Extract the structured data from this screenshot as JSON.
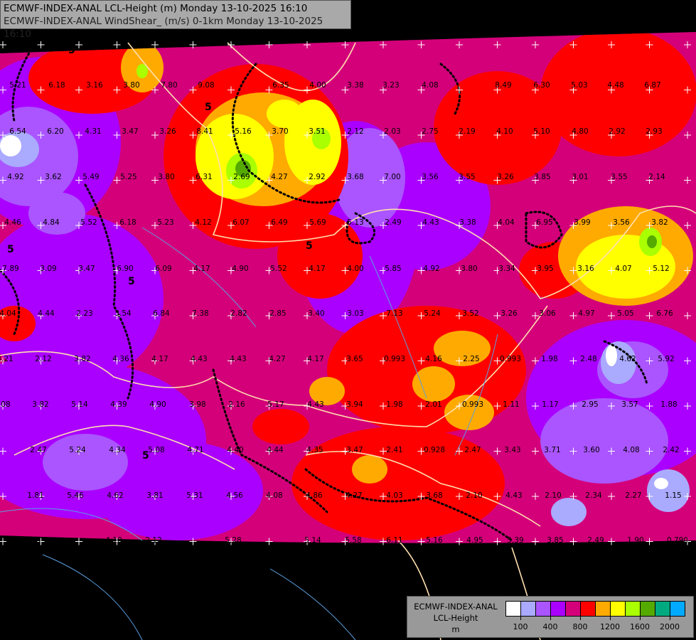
{
  "header": {
    "line1": "ECMWF-INDEX-ANAL LCL-Height (m) Monday 13-10-2025 16:10",
    "line2": "ECMWF-INDEX-ANAL WindShear_ (m/s) 0-1km Monday 13-10-2025 16:10"
  },
  "legend": {
    "line1": "ECMWF-INDEX-ANAL",
    "line2": "LCL-Height",
    "unit": "m",
    "colors": [
      "#ffffff",
      "#aaaaff",
      "#aa55ff",
      "#aa00ff",
      "#d4007a",
      "#ff0000",
      "#ffaa00",
      "#ffff00",
      "#aaff00",
      "#55aa00",
      "#00aa80",
      "#00aaff"
    ],
    "tick_labels": [
      "100",
      "400",
      "800",
      "1200",
      "1600",
      "2000"
    ]
  },
  "contour_label": "5",
  "wind_shear_values": [
    [
      "5.21",
      "6.18",
      "3.16",
      "3.80",
      "7.80",
      "9.08",
      "6.35",
      "4.00",
      "3.38",
      "3.23",
      "4.08",
      "8.49",
      "6.30",
      "5.03",
      "4.48",
      "6.87"
    ],
    [
      "6.54",
      "6.20",
      "4.31",
      "3.47",
      "3.26",
      "8.41",
      "5.16",
      "3.70",
      "3.51",
      "2.12",
      "2.03",
      "2.75",
      "2.19",
      "4.10",
      "5.10",
      "4.80",
      "2.92",
      "2.93"
    ],
    [
      "4.92",
      "3.62",
      "5.49",
      "5.25",
      "3.80",
      "6.31",
      "2.69",
      "4.27",
      "2.92",
      "3.68",
      "7.00",
      "3.56",
      "3.55",
      "3.26",
      "3.85",
      "3.01",
      "3.55",
      "2.14"
    ],
    [
      "4.46",
      "4.84",
      "5.52",
      "6.18",
      "5.23",
      "4.12",
      "6.07",
      "6.49",
      "5.69",
      "5.13",
      "2.49",
      "4.43",
      "3.38",
      "4.04",
      "6.95",
      "3.99",
      "3.56",
      "3.82"
    ],
    [
      "7.89",
      "3.09",
      "3.47",
      "6.90",
      "6.09",
      "4.17",
      "4.90",
      "5.52",
      "4.17",
      "4.00",
      "5.85",
      "4.92",
      "3.80",
      "3.34",
      "3.95",
      "3.16",
      "4.07",
      "5.12"
    ],
    [
      "4.04",
      "4.44",
      "2.23",
      "3.54",
      "6.84",
      "7.38",
      "2.82",
      "2.85",
      "3.40",
      "3.03",
      "7.13",
      "5.24",
      "3.52",
      "3.26",
      "3.06",
      "4.97",
      "5.05",
      "6.76"
    ],
    [
      "3.21",
      "2.12",
      "3.82",
      "4.36",
      "4.17",
      "4.43",
      "4.43",
      "4.27",
      "4.17",
      "3.65",
      "0.993",
      "4.16",
      "2.25",
      "0.993",
      "1.98",
      "2.48",
      "4.62",
      "5.92"
    ],
    [
      "3.08",
      "3.82",
      "5.14",
      "4.39",
      "4.90",
      "3.98",
      "2.16",
      "5.17",
      "4.43",
      "3.94",
      "1.98",
      "2.01",
      "0.993",
      "1.11",
      "1.17",
      "2.95",
      "3.57",
      "1.88"
    ],
    [
      "2.47",
      "5.24",
      "4.34",
      "5.08",
      "4.71",
      "4.40",
      "4.44",
      "4.35",
      "3.47",
      "2.41",
      "0.928",
      "2.47",
      "3.43",
      "3.71",
      "3.60",
      "4.08",
      "2.42"
    ],
    [
      "1.81",
      "5.46",
      "4.62",
      "3.81",
      "5.31",
      "4.56",
      "4.08",
      "4.86",
      "4.27",
      "4.03",
      "3.68",
      "2.10",
      "4.43",
      "2.10",
      "2.34",
      "2.27",
      "1.15"
    ],
    [
      "6.15",
      "4.10",
      "2.12",
      "5.28",
      "5.14",
      "5.58",
      "6.11",
      "5.16",
      "4.95",
      "5.39",
      "3.85",
      "2.49",
      "1.90",
      "0.790"
    ]
  ]
}
